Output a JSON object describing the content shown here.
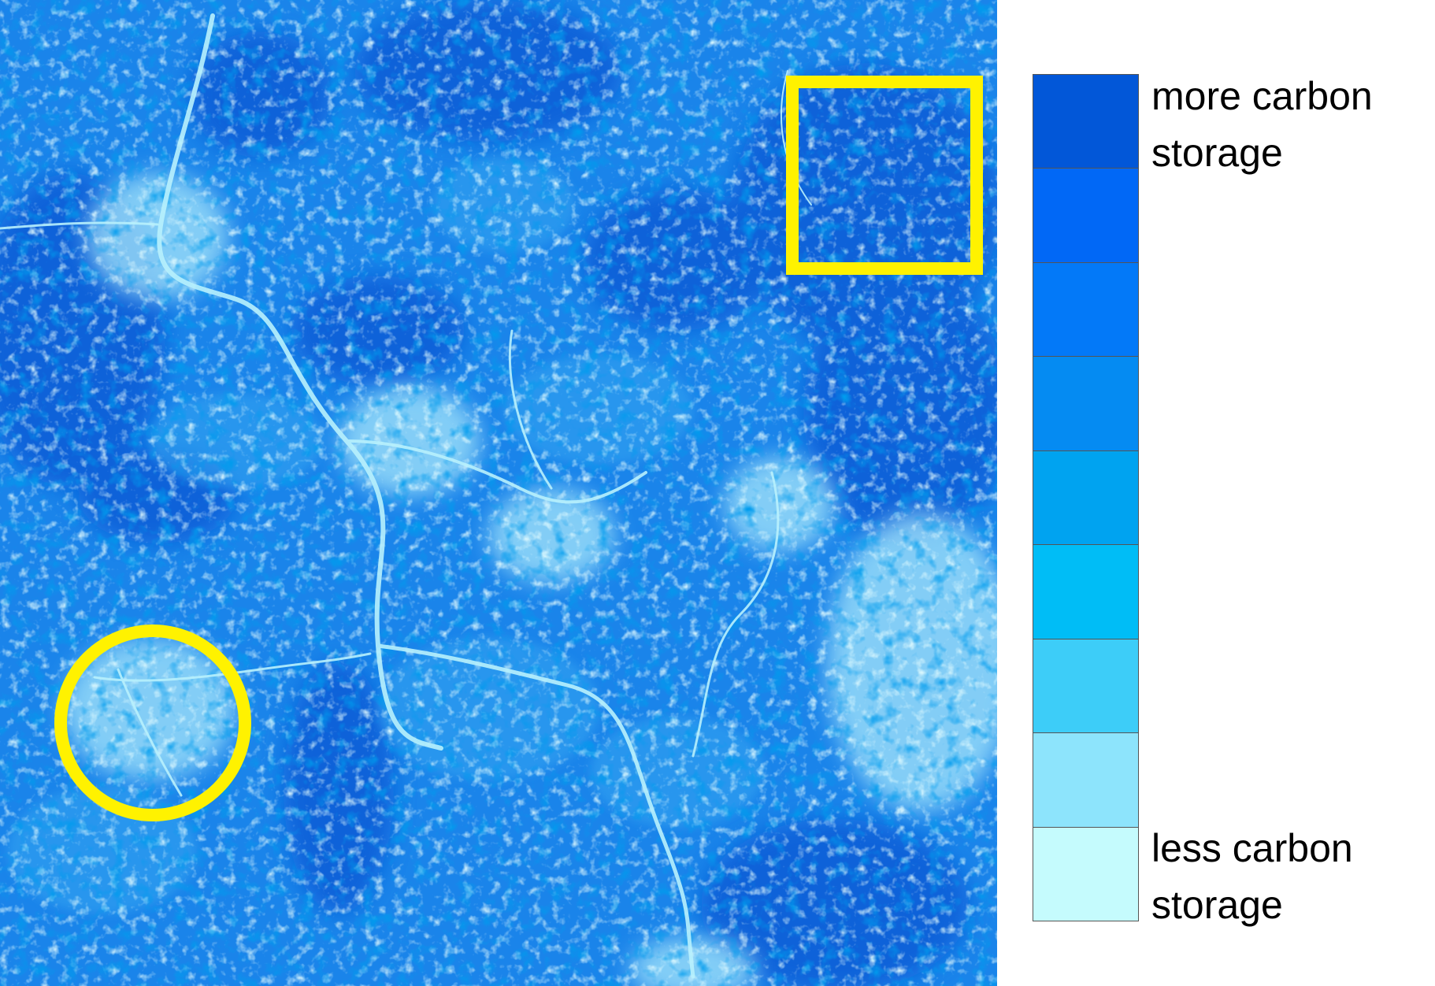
{
  "map": {
    "background_color": "#1a84ea",
    "highlight_color": "#fff200",
    "markers": [
      {
        "shape": "square",
        "name": "highlight-square"
      },
      {
        "shape": "circle",
        "name": "highlight-circle"
      }
    ]
  },
  "legend": {
    "top_label_line1": "more carbon",
    "top_label_line2": "storage",
    "bottom_label_line1": "less carbon",
    "bottom_label_line2": "storage",
    "colors": [
      "#0257d8",
      "#0168f6",
      "#0379f8",
      "#058bf2",
      "#00a3f0",
      "#00bdf6",
      "#3dcdf8",
      "#8de4fc",
      "#c5fbfd"
    ]
  }
}
